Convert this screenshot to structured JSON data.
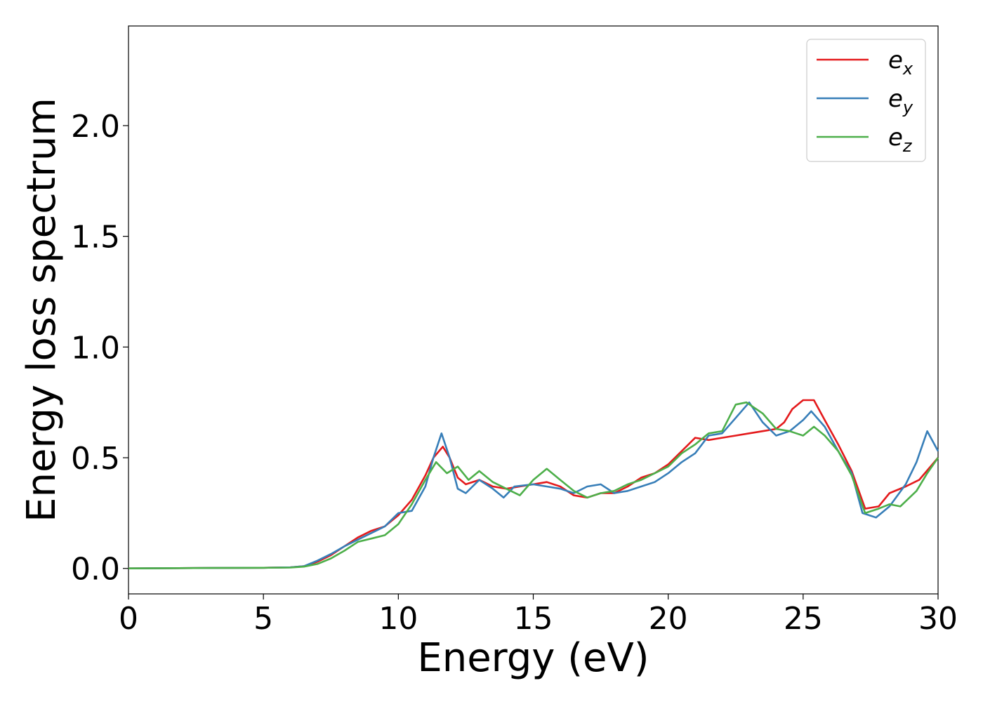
{
  "chart_data": {
    "type": "line",
    "title": "",
    "xlabel": "Energy (eV)",
    "ylabel": "Energy loss spectrum",
    "xlim": [
      0,
      30
    ],
    "ylim": [
      -0.115,
      2.45
    ],
    "xticks": [
      0,
      5,
      10,
      15,
      20,
      25,
      30
    ],
    "xtick_labels": [
      "0",
      "5",
      "10",
      "15",
      "20",
      "25",
      "30"
    ],
    "yticks": [
      0.0,
      0.5,
      1.0,
      1.5,
      2.0
    ],
    "ytick_labels": [
      "0.0",
      "0.5",
      "1.0",
      "1.5",
      "2.0"
    ],
    "grid": false,
    "legend_position": "top-right",
    "series": [
      {
        "name": "e",
        "subscript": "x",
        "color": "#e41a1c",
        "points": [
          [
            0,
            0
          ],
          [
            3,
            0.002
          ],
          [
            5,
            0.003
          ],
          [
            6,
            0.005
          ],
          [
            6.5,
            0.01
          ],
          [
            7,
            0.03
          ],
          [
            7.5,
            0.06
          ],
          [
            8,
            0.1
          ],
          [
            8.5,
            0.14
          ],
          [
            9,
            0.17
          ],
          [
            9.5,
            0.19
          ],
          [
            10,
            0.24
          ],
          [
            10.5,
            0.31
          ],
          [
            11,
            0.42
          ],
          [
            11.3,
            0.5
          ],
          [
            11.65,
            0.55
          ],
          [
            11.9,
            0.5
          ],
          [
            12.2,
            0.41
          ],
          [
            12.5,
            0.38
          ],
          [
            13,
            0.4
          ],
          [
            13.5,
            0.37
          ],
          [
            14,
            0.36
          ],
          [
            14.5,
            0.37
          ],
          [
            15,
            0.38
          ],
          [
            15.5,
            0.39
          ],
          [
            16,
            0.37
          ],
          [
            16.5,
            0.33
          ],
          [
            17,
            0.32
          ],
          [
            17.5,
            0.34
          ],
          [
            18,
            0.34
          ],
          [
            18.5,
            0.37
          ],
          [
            19,
            0.41
          ],
          [
            19.5,
            0.43
          ],
          [
            20,
            0.47
          ],
          [
            20.5,
            0.53
          ],
          [
            21,
            0.59
          ],
          [
            21.5,
            0.58
          ],
          [
            22,
            0.59
          ],
          [
            22.5,
            0.6
          ],
          [
            23,
            0.61
          ],
          [
            23.5,
            0.62
          ],
          [
            24,
            0.63
          ],
          [
            24.3,
            0.66
          ],
          [
            24.6,
            0.72
          ],
          [
            25,
            0.76
          ],
          [
            25.4,
            0.76
          ],
          [
            25.8,
            0.67
          ],
          [
            26.3,
            0.56
          ],
          [
            26.8,
            0.44
          ],
          [
            27.3,
            0.27
          ],
          [
            27.8,
            0.28
          ],
          [
            28.2,
            0.34
          ],
          [
            28.8,
            0.37
          ],
          [
            29.3,
            0.4
          ],
          [
            30,
            0.5
          ]
        ]
      },
      {
        "name": "e",
        "subscript": "y",
        "color": "#377eb8",
        "points": [
          [
            0,
            0
          ],
          [
            3,
            0.002
          ],
          [
            5,
            0.003
          ],
          [
            6,
            0.005
          ],
          [
            6.5,
            0.01
          ],
          [
            7,
            0.035
          ],
          [
            7.5,
            0.065
          ],
          [
            8,
            0.1
          ],
          [
            8.5,
            0.13
          ],
          [
            9,
            0.16
          ],
          [
            9.5,
            0.19
          ],
          [
            10,
            0.25
          ],
          [
            10.5,
            0.26
          ],
          [
            11,
            0.37
          ],
          [
            11.3,
            0.5
          ],
          [
            11.6,
            0.61
          ],
          [
            11.9,
            0.5
          ],
          [
            12.2,
            0.36
          ],
          [
            12.5,
            0.34
          ],
          [
            13,
            0.4
          ],
          [
            13.5,
            0.36
          ],
          [
            13.9,
            0.32
          ],
          [
            14.3,
            0.37
          ],
          [
            15,
            0.38
          ],
          [
            15.5,
            0.37
          ],
          [
            16,
            0.36
          ],
          [
            16.5,
            0.34
          ],
          [
            17,
            0.37
          ],
          [
            17.5,
            0.38
          ],
          [
            18,
            0.34
          ],
          [
            18.5,
            0.35
          ],
          [
            19,
            0.37
          ],
          [
            19.5,
            0.39
          ],
          [
            20,
            0.43
          ],
          [
            20.5,
            0.48
          ],
          [
            21,
            0.52
          ],
          [
            21.5,
            0.6
          ],
          [
            22,
            0.61
          ],
          [
            22.5,
            0.68
          ],
          [
            23,
            0.75
          ],
          [
            23.5,
            0.66
          ],
          [
            24,
            0.6
          ],
          [
            24.5,
            0.62
          ],
          [
            25,
            0.67
          ],
          [
            25.3,
            0.71
          ],
          [
            25.8,
            0.64
          ],
          [
            26.3,
            0.53
          ],
          [
            26.8,
            0.43
          ],
          [
            27.2,
            0.25
          ],
          [
            27.7,
            0.23
          ],
          [
            28.2,
            0.28
          ],
          [
            28.8,
            0.38
          ],
          [
            29.2,
            0.48
          ],
          [
            29.6,
            0.62
          ],
          [
            30,
            0.53
          ]
        ]
      },
      {
        "name": "e",
        "subscript": "z",
        "color": "#4daf4a",
        "points": [
          [
            0,
            0
          ],
          [
            3,
            0.002
          ],
          [
            5,
            0.003
          ],
          [
            6,
            0.004
          ],
          [
            6.5,
            0.008
          ],
          [
            7,
            0.02
          ],
          [
            7.5,
            0.045
          ],
          [
            8,
            0.08
          ],
          [
            8.5,
            0.12
          ],
          [
            9,
            0.135
          ],
          [
            9.5,
            0.15
          ],
          [
            10,
            0.2
          ],
          [
            10.5,
            0.29
          ],
          [
            11,
            0.4
          ],
          [
            11.4,
            0.48
          ],
          [
            11.8,
            0.43
          ],
          [
            12.2,
            0.46
          ],
          [
            12.6,
            0.4
          ],
          [
            13,
            0.44
          ],
          [
            13.5,
            0.39
          ],
          [
            14,
            0.36
          ],
          [
            14.5,
            0.33
          ],
          [
            15,
            0.4
          ],
          [
            15.5,
            0.45
          ],
          [
            16,
            0.4
          ],
          [
            16.5,
            0.35
          ],
          [
            17,
            0.32
          ],
          [
            17.5,
            0.34
          ],
          [
            18,
            0.35
          ],
          [
            18.5,
            0.38
          ],
          [
            19,
            0.4
          ],
          [
            19.5,
            0.43
          ],
          [
            20,
            0.46
          ],
          [
            20.5,
            0.52
          ],
          [
            21,
            0.56
          ],
          [
            21.5,
            0.61
          ],
          [
            22,
            0.62
          ],
          [
            22.5,
            0.74
          ],
          [
            22.9,
            0.75
          ],
          [
            23.5,
            0.7
          ],
          [
            24,
            0.63
          ],
          [
            24.5,
            0.62
          ],
          [
            25,
            0.6
          ],
          [
            25.4,
            0.64
          ],
          [
            25.8,
            0.6
          ],
          [
            26.3,
            0.53
          ],
          [
            26.8,
            0.42
          ],
          [
            27.3,
            0.25
          ],
          [
            27.8,
            0.27
          ],
          [
            28.2,
            0.29
          ],
          [
            28.6,
            0.28
          ],
          [
            29.2,
            0.35
          ],
          [
            29.6,
            0.43
          ],
          [
            30,
            0.5
          ]
        ]
      }
    ]
  }
}
